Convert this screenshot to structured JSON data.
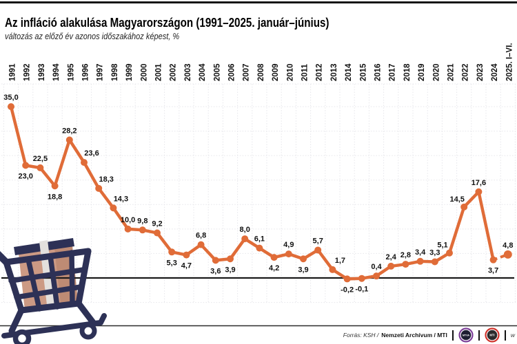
{
  "header": {
    "title": "Az infláció alakulása Magyarországon (1991–2025. január–június)",
    "subtitle": "változás az előző év azonos időszakához képest, %"
  },
  "footer": {
    "source_prefix": "Forrás: KSH /",
    "source_bold": "Nemzeti Archívum / MTI",
    "logo_mtva": "MTVA",
    "logo_mti": "MTI",
    "url_fragment": "w"
  },
  "colors": {
    "line": "#E06C38",
    "cart": "#2D3156",
    "box": "#CC9A84",
    "box_shade": "#BE8B74",
    "ribbon": "#E3E0DD",
    "grid": "#E7E7EB",
    "zero_line": "#1A1A1A",
    "divider": "#2B2B2B",
    "label_text": "#101010",
    "logo_mtva_ring": "#7C3F98",
    "logo_mti_ring": "#D0342C",
    "logo_inner": "#1E1E32"
  },
  "chart_data": {
    "type": "line",
    "title": "Az infláció alakulása Magyarországon (1991–2025. január–június)",
    "subtitle": "változás az előző év azonos időszakához képest, %",
    "unit": "%",
    "categories": [
      "1991",
      "1992",
      "1993",
      "1994",
      "1995",
      "1996",
      "1997",
      "1998",
      "1999",
      "2000",
      "2001",
      "2002",
      "2003",
      "2004",
      "2005",
      "2006",
      "2007",
      "2008",
      "2009",
      "2010",
      "2011",
      "2012",
      "2013",
      "2014",
      "2015",
      "2016",
      "2017",
      "2018",
      "2019",
      "2020",
      "2021",
      "2022",
      "2023",
      "2024",
      "2025. I–VI."
    ],
    "values": [
      35.0,
      23.0,
      22.5,
      18.8,
      28.2,
      23.6,
      18.3,
      14.3,
      10.0,
      9.8,
      9.2,
      5.3,
      4.7,
      6.8,
      3.6,
      3.9,
      8.0,
      6.1,
      4.2,
      4.9,
      3.9,
      5.7,
      1.7,
      -0.2,
      -0.1,
      0.4,
      2.4,
      2.8,
      3.4,
      3.3,
      5.1,
      14.5,
      17.6,
      3.7,
      4.8
    ],
    "point_labels": [
      "35,0",
      "23,0",
      "22,5",
      "18,8",
      "28,2",
      "23,6",
      "18,3",
      "14,3",
      "10,0",
      "9,8",
      "9,2",
      "5,3",
      "4,7",
      "6,8",
      "3,6",
      "3,9",
      "8,0",
      "6,1",
      "4,2",
      "4,9",
      "3,9",
      "5,7",
      "1,7",
      "-0,2",
      "-0,1",
      "0,4",
      "2,4",
      "2,8",
      "3,4",
      "3,3",
      "5,1",
      "14,5",
      "17,6",
      "3,7",
      "4,8"
    ],
    "label_pos": [
      "a",
      "b",
      "a",
      "b",
      "a",
      "ar",
      "ar",
      "ar",
      "a",
      "a",
      "a",
      "b",
      "b",
      "a",
      "b",
      "b",
      "a",
      "a",
      "b",
      "a",
      "b",
      "a",
      "ar",
      "b",
      "b",
      "a",
      "a",
      "a",
      "a",
      "a",
      "al",
      "al",
      "a",
      "b",
      "a"
    ],
    "ylim": [
      -5,
      39
    ],
    "grid_step": 5,
    "grid": "dotted",
    "zero_line": true,
    "legend": "none",
    "last_segment_dashed": true,
    "series_color": "#E06C38"
  }
}
